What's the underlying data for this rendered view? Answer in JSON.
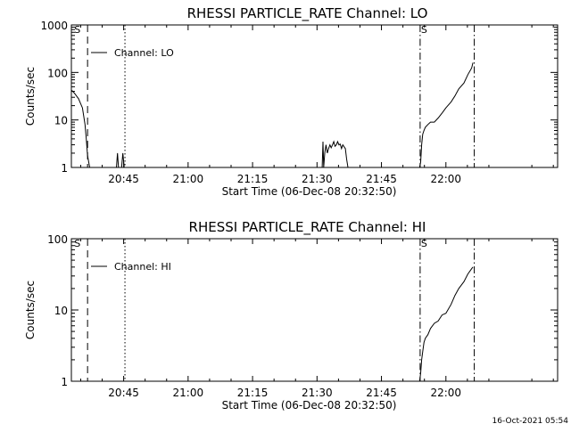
{
  "timestamp": "16-Oct-2021 05:54",
  "chart_data": [
    {
      "type": "line",
      "title": "RHESSI PARTICLE_RATE Channel: LO",
      "xlabel": "Start Time (06-Dec-08 20:32:50)",
      "ylabel": "Counts/sec",
      "yscale": "log",
      "ylim": [
        1,
        1000
      ],
      "xlim": [
        20.5472,
        22.4333
      ],
      "x_unit": "hour-of-day",
      "x_ticks": [
        {
          "v": 20.75,
          "label": "20:45"
        },
        {
          "v": 21.0,
          "label": "21:00"
        },
        {
          "v": 21.25,
          "label": "21:15"
        },
        {
          "v": 21.5,
          "label": "21:30"
        },
        {
          "v": 21.75,
          "label": "21:45"
        },
        {
          "v": 22.0,
          "label": "22:00"
        }
      ],
      "y_ticks": [
        {
          "v": 1,
          "label": "1"
        },
        {
          "v": 10,
          "label": "10"
        },
        {
          "v": 100,
          "label": "100"
        },
        {
          "v": 1000,
          "label": "1000"
        }
      ],
      "legend": {
        "label": "Channel: LO",
        "placement": "top-left"
      },
      "markers": [
        {
          "x": 20.555,
          "style": "none",
          "label": "S"
        },
        {
          "x": 20.61,
          "style": "dashed",
          "label": ""
        },
        {
          "x": 20.755,
          "style": "dotted",
          "label": ""
        },
        {
          "x": 21.9,
          "style": "dashdot",
          "label": "S"
        },
        {
          "x": 22.11,
          "style": "dashdot",
          "label": ""
        }
      ],
      "series": [
        {
          "segments": [
            [
              [
                20.549,
                42
              ],
              [
                20.56,
                36
              ],
              [
                20.575,
                28
              ],
              [
                20.59,
                18
              ],
              [
                20.6,
                8
              ],
              [
                20.605,
                4
              ],
              [
                20.61,
                1.8
              ],
              [
                20.618,
                1
              ]
            ],
            [
              [
                20.722,
                1
              ],
              [
                20.726,
                2
              ],
              [
                20.73,
                1
              ]
            ],
            [
              [
                20.742,
                1
              ],
              [
                20.747,
                2
              ],
              [
                20.752,
                1
              ]
            ],
            [
              [
                21.52,
                1
              ],
              [
                21.523,
                3.5
              ],
              [
                21.526,
                1
              ],
              [
                21.53,
                2
              ],
              [
                21.535,
                3
              ],
              [
                21.54,
                2
              ],
              [
                21.545,
                2.5
              ],
              [
                21.55,
                3
              ],
              [
                21.555,
                2.6
              ],
              [
                21.56,
                3
              ],
              [
                21.565,
                3.5
              ],
              [
                21.57,
                2.8
              ],
              [
                21.575,
                3
              ],
              [
                21.58,
                3.5
              ],
              [
                21.585,
                3
              ],
              [
                21.59,
                3.1
              ],
              [
                21.595,
                2.5
              ],
              [
                21.6,
                3
              ],
              [
                21.61,
                2.5
              ],
              [
                21.615,
                1.5
              ],
              [
                21.62,
                1
              ]
            ],
            [
              [
                21.898,
                1
              ],
              [
                21.902,
                1.3
              ],
              [
                21.906,
                3
              ],
              [
                21.91,
                5
              ],
              [
                21.915,
                6
              ],
              [
                21.92,
                7
              ],
              [
                21.93,
                8
              ],
              [
                21.94,
                9
              ],
              [
                21.955,
                9
              ],
              [
                21.97,
                11
              ],
              [
                21.985,
                14
              ],
              [
                22.0,
                18
              ],
              [
                22.02,
                24
              ],
              [
                22.035,
                32
              ],
              [
                22.05,
                45
              ],
              [
                22.07,
                60
              ],
              [
                22.085,
                90
              ],
              [
                22.1,
                125
              ],
              [
                22.105,
                160
              ]
            ]
          ]
        }
      ]
    },
    {
      "type": "line",
      "title": "RHESSI PARTICLE_RATE Channel: HI",
      "xlabel": "Start Time (06-Dec-08 20:32:50)",
      "ylabel": "Counts/sec",
      "yscale": "log",
      "ylim": [
        1,
        100
      ],
      "xlim": [
        20.5472,
        22.4333
      ],
      "x_unit": "hour-of-day",
      "x_ticks": [
        {
          "v": 20.75,
          "label": "20:45"
        },
        {
          "v": 21.0,
          "label": "21:00"
        },
        {
          "v": 21.25,
          "label": "21:15"
        },
        {
          "v": 21.5,
          "label": "21:30"
        },
        {
          "v": 21.75,
          "label": "21:45"
        },
        {
          "v": 22.0,
          "label": "22:00"
        }
      ],
      "y_ticks": [
        {
          "v": 1,
          "label": "1"
        },
        {
          "v": 10,
          "label": "10"
        },
        {
          "v": 100,
          "label": "100"
        }
      ],
      "legend": {
        "label": "Channel: HI",
        "placement": "top-left"
      },
      "markers": [
        {
          "x": 20.555,
          "style": "none",
          "label": "S"
        },
        {
          "x": 20.61,
          "style": "dashed",
          "label": ""
        },
        {
          "x": 20.755,
          "style": "dotted",
          "label": ""
        },
        {
          "x": 21.9,
          "style": "dashdot",
          "label": "S"
        },
        {
          "x": 22.11,
          "style": "dashdot",
          "label": ""
        }
      ],
      "series": [
        {
          "segments": [
            [
              [
                21.898,
                1
              ],
              [
                21.902,
                1.3
              ],
              [
                21.906,
                2
              ],
              [
                21.91,
                2.6
              ],
              [
                21.915,
                3.5
              ],
              [
                21.92,
                4
              ],
              [
                21.93,
                4.5
              ],
              [
                21.94,
                5.5
              ],
              [
                21.955,
                6.5
              ],
              [
                21.97,
                7
              ],
              [
                21.985,
                8.5
              ],
              [
                22.0,
                9
              ],
              [
                22.02,
                12
              ],
              [
                22.035,
                16
              ],
              [
                22.05,
                20
              ],
              [
                22.07,
                25
              ],
              [
                22.085,
                32
              ],
              [
                22.1,
                38
              ],
              [
                22.105,
                40
              ]
            ]
          ]
        }
      ]
    }
  ]
}
